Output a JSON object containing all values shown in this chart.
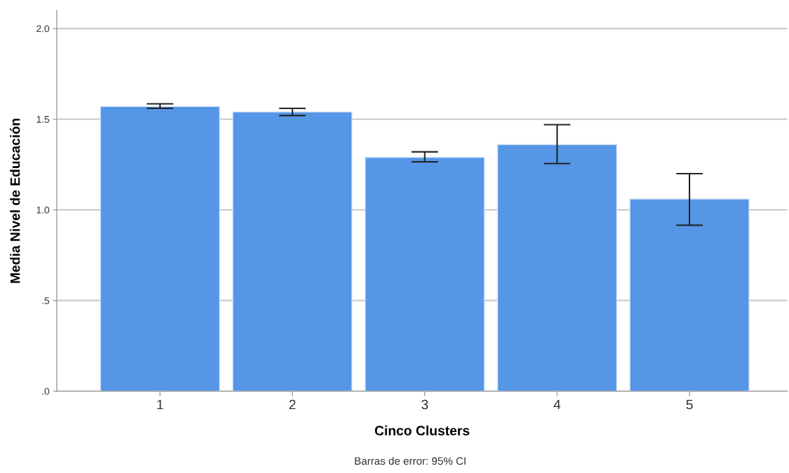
{
  "chart_data": {
    "type": "bar",
    "xlabel": "Cinco Clusters",
    "ylabel": "Media Nivel de Educación",
    "categories": [
      "1",
      "2",
      "3",
      "4",
      "5"
    ],
    "values": [
      1.57,
      1.54,
      1.29,
      1.36,
      1.06
    ],
    "errors": [
      [
        1.56,
        1.585
      ],
      [
        1.52,
        1.56
      ],
      [
        1.265,
        1.32
      ],
      [
        1.255,
        1.47
      ],
      [
        0.915,
        1.2
      ]
    ],
    "color": "#5596e6",
    "ylim": [
      0,
      2.1
    ],
    "yticks": [
      {
        "value": 0,
        "label": ".0"
      },
      {
        "value": 0.5,
        "label": ".5"
      },
      {
        "value": 1.0,
        "label": "1.0"
      },
      {
        "value": 1.5,
        "label": "1.5"
      },
      {
        "value": 2.0,
        "label": "2.0"
      }
    ],
    "grid": "y",
    "annotations": [
      "Barras de error: 95% CI"
    ]
  }
}
